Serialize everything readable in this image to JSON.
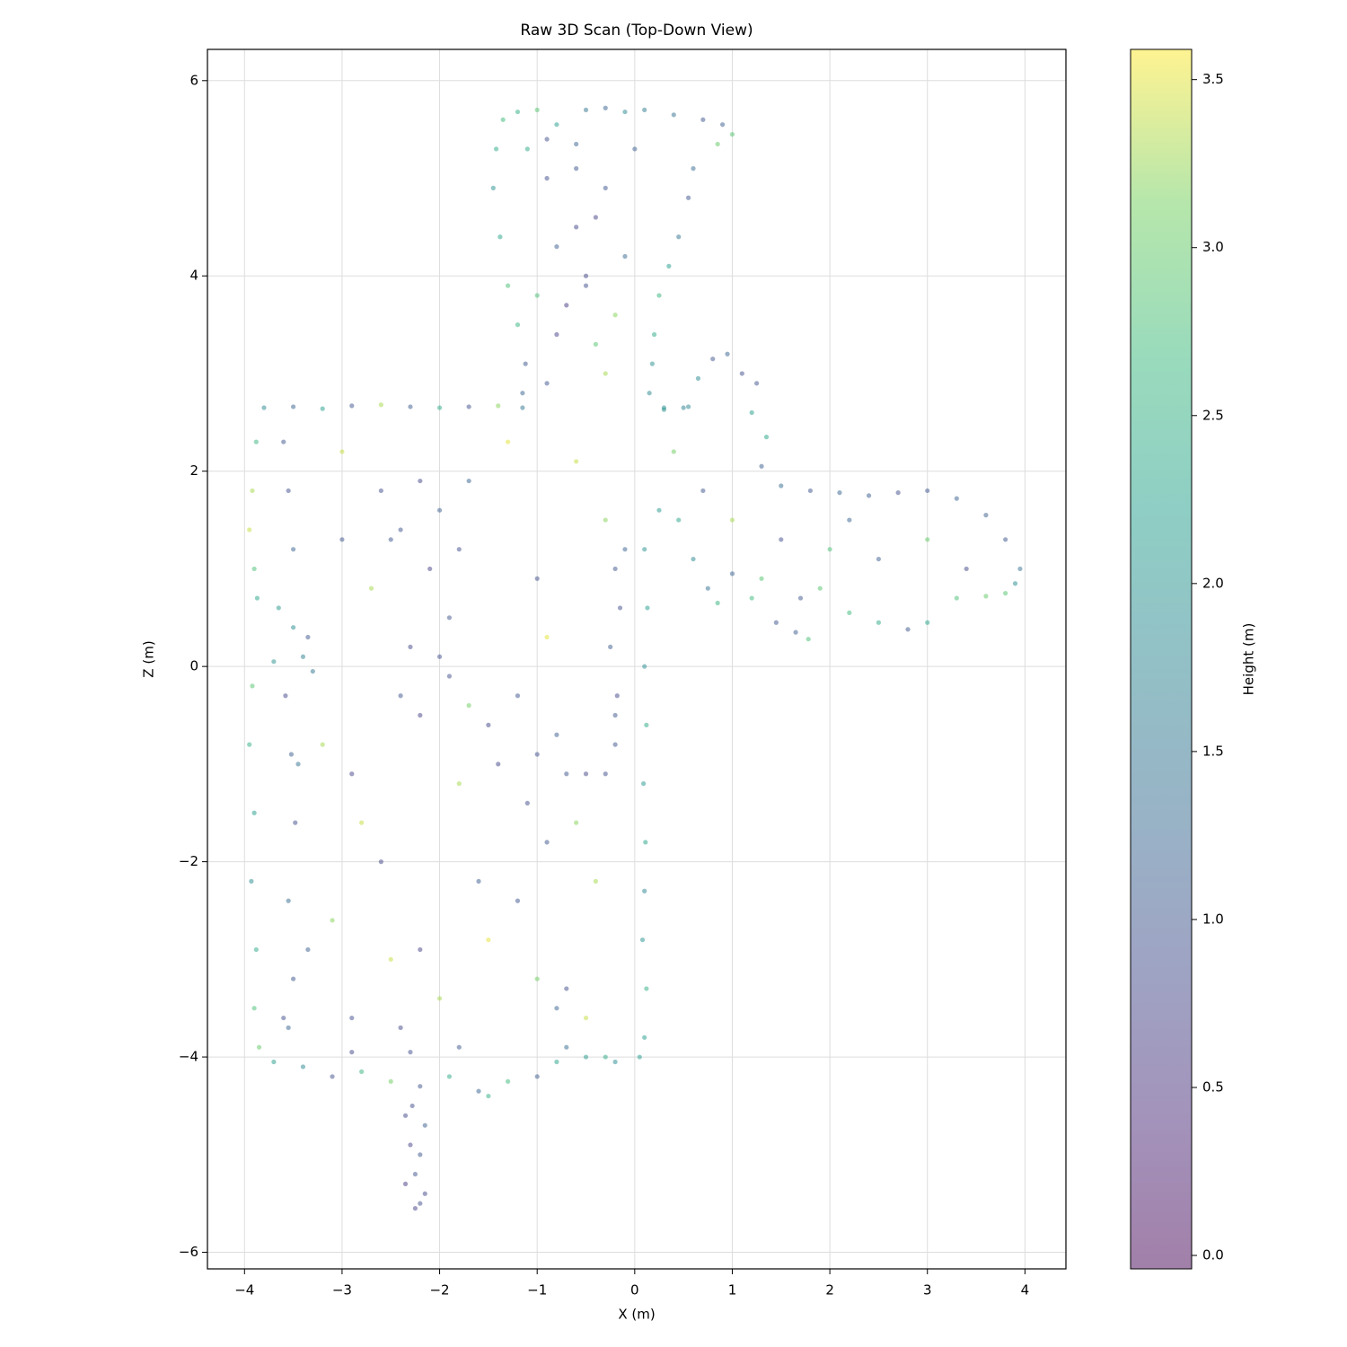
{
  "chart_data": {
    "type": "scatter",
    "title": "Raw 3D Scan (Top-Down View)",
    "xlabel": "X (m)",
    "ylabel": "Z (m)",
    "colorbar_label": "Height (m)",
    "cmap": "viridis",
    "alpha": 0.5,
    "grid": true,
    "xlim": [
      -4.38,
      4.42
    ],
    "ylim": [
      -6.17,
      6.32
    ],
    "clim": [
      -0.04,
      3.59
    ],
    "xticks": [
      {
        "value": -4,
        "label": "−4"
      },
      {
        "value": -3,
        "label": "−3"
      },
      {
        "value": -2,
        "label": "−2"
      },
      {
        "value": -1,
        "label": "−1"
      },
      0,
      1,
      2,
      3,
      4
    ],
    "yticks": [
      {
        "value": -6,
        "label": "−6"
      },
      {
        "value": -4,
        "label": "−4"
      },
      {
        "value": -2,
        "label": "−2"
      },
      0,
      2,
      4,
      6
    ],
    "cticks": [
      {
        "value": 0,
        "label": "0.0"
      },
      0.5,
      {
        "value": 1,
        "label": "1.0"
      },
      1.5,
      {
        "value": 2,
        "label": "2.0"
      },
      2.5,
      {
        "value": 3,
        "label": "3.0"
      },
      3.5
    ],
    "x": [
      -3.8,
      -3.5,
      -3.2,
      -2.9,
      -2.6,
      -2.3,
      -2.0,
      -1.7,
      -1.4,
      -1.15,
      -3.88,
      -3.92,
      -3.95,
      -3.9,
      -3.87,
      -3.92,
      -3.95,
      -3.9,
      -3.93,
      -3.88,
      -3.9,
      -3.85,
      -3.6,
      -3.55,
      -3.5,
      -3.58,
      -3.52,
      -3.48,
      -3.55,
      -3.5,
      -3.65,
      -3.5,
      -3.4,
      -3.3,
      -3.35,
      -3.55,
      -3.6,
      -3.7,
      -3.45,
      -3.35,
      -3.7,
      -3.4,
      -3.1,
      -2.8,
      -2.5,
      -2.2,
      -1.9,
      -1.6,
      -1.3,
      -1.0,
      -0.8,
      -0.5,
      -0.2,
      0.05,
      -2.9,
      -2.3,
      -1.8,
      -1.5,
      -0.7,
      -0.3,
      -2.35,
      -2.3,
      -2.25,
      -2.2,
      -2.15,
      -2.35,
      -2.28,
      -2.2,
      -2.25,
      -2.15,
      0.1,
      0.12,
      0.08,
      0.1,
      0.11,
      0.09,
      0.12,
      0.1,
      0.13,
      0.1,
      -0.2,
      -0.15,
      -0.25,
      -0.18,
      -0.2,
      -0.1,
      -0.3,
      -0.2,
      -0.5,
      -0.7,
      -1.15,
      -1.12,
      -1.2,
      -1.3,
      -1.38,
      -1.45,
      -1.42,
      -1.35,
      -1.2,
      -1.0,
      -0.8,
      -0.5,
      -0.3,
      -0.1,
      0.1,
      0.4,
      0.7,
      0.9,
      1.0,
      0.85,
      0.6,
      0.55,
      0.45,
      0.35,
      0.25,
      0.2,
      0.18,
      0.15,
      0.3,
      0.5,
      -0.9,
      -0.6,
      -0.4,
      -0.8,
      -0.5,
      -0.2,
      -0.7,
      -0.4,
      -0.9,
      -0.3,
      -1.1,
      -0.6,
      -0.9,
      0.0,
      -0.3,
      -0.6,
      -0.1,
      -1.0,
      -0.5,
      -0.8,
      0.3,
      0.55,
      0.65,
      0.8,
      0.95,
      1.1,
      1.25,
      1.2,
      1.35,
      1.3,
      1.5,
      1.8,
      2.1,
      2.4,
      2.7,
      3.0,
      3.3,
      3.6,
      3.8,
      3.95,
      0.25,
      0.45,
      0.6,
      0.75,
      0.85,
      1.0,
      1.2,
      1.45,
      1.65,
      1.78,
      1.7,
      1.9,
      2.2,
      2.5,
      2.8,
      3.0,
      3.3,
      3.6,
      3.8,
      3.9,
      0.4,
      0.7,
      1.0,
      1.5,
      2.0,
      2.5,
      3.0,
      3.4,
      2.2,
      1.3,
      -2.6,
      -2.4,
      -2.2,
      -2.0,
      -1.8,
      -2.5,
      -2.1,
      -1.7,
      -2.3,
      -1.9,
      -2.4,
      -2.0,
      -2.2,
      -1.5,
      -1.2,
      -1.0,
      -0.8,
      -1.4,
      -1.1,
      -0.9,
      -3.0,
      -2.7,
      -1.3,
      -0.6,
      -0.3,
      -3.2,
      -2.8,
      -1.7,
      -0.9,
      -0.4,
      -3.1,
      -2.5,
      -2.0,
      -1.5,
      -1.0,
      -0.5,
      -2.9,
      -1.8,
      -1.2,
      -0.6,
      -3.0,
      -2.6,
      -2.2,
      -1.6,
      -0.7,
      -0.8,
      -2.4,
      -1.0,
      -1.9,
      -2.9
    ],
    "values": [
      2.65,
      2.66,
      2.64,
      2.67,
      2.68,
      2.66,
      2.65,
      2.66,
      2.67,
      2.65,
      2.3,
      1.8,
      1.4,
      1.0,
      0.7,
      -0.2,
      -0.8,
      -1.5,
      -2.2,
      -2.9,
      -3.5,
      -3.9,
      2.3,
      1.8,
      1.2,
      -0.3,
      -0.9,
      -1.6,
      -2.4,
      -3.2,
      0.6,
      0.4,
      0.1,
      -0.05,
      0.3,
      -3.7,
      -3.6,
      0.05,
      -1.0,
      -2.9,
      -4.05,
      -4.1,
      -4.2,
      -4.15,
      -4.25,
      -4.3,
      -4.2,
      -4.35,
      -4.25,
      -4.2,
      -4.05,
      -4.0,
      -4.05,
      -4.0,
      -3.95,
      -3.95,
      -3.9,
      -4.4,
      -3.9,
      -4.0,
      -4.6,
      -4.9,
      -5.2,
      -5.5,
      -4.7,
      -5.3,
      -4.5,
      -5.0,
      -5.55,
      -5.4,
      -3.8,
      -3.3,
      -2.8,
      -2.3,
      -1.8,
      -1.2,
      -0.6,
      0.0,
      0.6,
      1.2,
      1.0,
      0.6,
      0.2,
      -0.3,
      -0.8,
      1.2,
      -1.1,
      -0.5,
      -1.1,
      -1.1,
      2.8,
      3.1,
      3.5,
      3.9,
      4.4,
      4.9,
      5.3,
      5.6,
      5.68,
      5.7,
      5.55,
      5.7,
      5.72,
      5.68,
      5.7,
      5.65,
      5.6,
      5.55,
      5.45,
      5.35,
      5.1,
      4.8,
      4.4,
      4.1,
      3.8,
      3.4,
      3.1,
      2.8,
      2.65,
      2.65,
      5.0,
      5.1,
      4.6,
      4.3,
      4.0,
      3.6,
      3.7,
      3.3,
      2.9,
      3.0,
      5.3,
      5.35,
      5.4,
      5.3,
      4.9,
      4.5,
      4.2,
      3.8,
      3.9,
      3.4,
      2.63,
      2.66,
      2.95,
      3.15,
      3.2,
      3.0,
      2.9,
      2.6,
      2.35,
      2.05,
      1.85,
      1.8,
      1.78,
      1.75,
      1.78,
      1.8,
      1.72,
      1.55,
      1.3,
      1.0,
      1.6,
      1.5,
      1.1,
      0.8,
      0.65,
      0.95,
      0.7,
      0.45,
      0.35,
      0.28,
      0.7,
      0.8,
      0.55,
      0.45,
      0.38,
      0.45,
      0.7,
      0.72,
      0.75,
      0.85,
      2.2,
      1.8,
      1.5,
      1.3,
      1.2,
      1.1,
      1.3,
      1.0,
      1.5,
      0.9,
      1.8,
      1.4,
      1.9,
      1.6,
      1.2,
      1.3,
      1.0,
      1.9,
      0.2,
      -0.1,
      -0.3,
      0.1,
      -0.5,
      -0.6,
      -0.3,
      -0.9,
      -0.7,
      -1.0,
      -1.4,
      -1.8,
      2.2,
      0.8,
      2.3,
      2.1,
      1.5,
      -0.8,
      -1.6,
      -0.4,
      0.3,
      -2.2,
      -2.6,
      -3.0,
      -3.4,
      -2.8,
      -3.2,
      -3.6,
      -3.6,
      -1.2,
      -2.4,
      -1.6,
      1.3,
      -2.0,
      -2.9,
      -2.2,
      -3.3,
      -3.5,
      -3.7,
      0.9,
      0.5,
      -1.1
    ],
    "heights": [
      1.8,
      1.2,
      2.2,
      1.0,
      3.3,
      1.1,
      2.4,
      0.9,
      3.2,
      1.5,
      2.6,
      3.3,
      3.4,
      2.8,
      2.3,
      2.9,
      2.5,
      2.2,
      1.9,
      2.4,
      2.8,
      3.0,
      1.0,
      0.9,
      1.2,
      0.8,
      1.1,
      0.9,
      1.3,
      1.0,
      2.1,
      1.9,
      1.7,
      1.5,
      1.0,
      1.2,
      0.9,
      2.0,
      1.4,
      1.1,
      2.2,
      1.8,
      0.9,
      2.6,
      3.1,
      1.0,
      2.4,
      1.2,
      2.7,
      1.1,
      2.3,
      2.1,
      1.9,
      2.2,
      0.8,
      0.9,
      1.0,
      2.5,
      1.3,
      2.4,
      0.8,
      0.7,
      1.0,
      0.9,
      1.1,
      0.6,
      0.9,
      1.0,
      0.7,
      0.8,
      2.2,
      2.5,
      2.0,
      1.8,
      2.3,
      2.1,
      2.4,
      1.9,
      2.2,
      2.0,
      1.0,
      0.9,
      1.1,
      0.8,
      1.0,
      1.2,
      0.9,
      1.0,
      0.8,
      1.0,
      1.2,
      1.0,
      2.6,
      2.8,
      2.3,
      2.0,
      2.4,
      2.7,
      2.5,
      2.9,
      2.2,
      1.5,
      1.2,
      1.8,
      1.6,
      1.4,
      1.0,
      1.1,
      2.9,
      3.0,
      1.3,
      1.0,
      1.5,
      2.2,
      2.6,
      2.4,
      2.0,
      1.8,
      1.9,
      1.7,
      0.9,
      1.0,
      0.7,
      1.1,
      0.8,
      3.2,
      0.6,
      2.9,
      1.0,
      3.3,
      2.4,
      1.2,
      0.9,
      1.1,
      1.0,
      0.8,
      1.3,
      2.8,
      0.9,
      0.7,
      2.0,
      1.8,
      1.9,
      1.0,
      1.2,
      0.9,
      1.0,
      2.2,
      2.3,
      1.1,
      1.3,
      1.0,
      1.2,
      1.1,
      0.9,
      1.0,
      1.2,
      1.1,
      1.0,
      1.4,
      2.1,
      2.3,
      1.8,
      1.4,
      2.6,
      1.2,
      2.7,
      1.0,
      1.1,
      2.8,
      1.0,
      2.9,
      2.7,
      2.4,
      1.0,
      2.3,
      2.8,
      3.0,
      2.9,
      1.9,
      3.1,
      1.0,
      3.3,
      0.9,
      2.8,
      1.1,
      3.0,
      0.8,
      1.2,
      2.9,
      0.9,
      1.0,
      0.8,
      1.1,
      0.9,
      1.0,
      0.7,
      1.2,
      0.8,
      0.9,
      1.0,
      0.9,
      0.7,
      0.8,
      1.0,
      0.9,
      1.1,
      0.8,
      0.9,
      1.0,
      3.4,
      3.3,
      3.5,
      3.4,
      3.2,
      3.3,
      3.4,
      3.1,
      3.5,
      3.3,
      3.2,
      3.4,
      3.3,
      3.5,
      3.1,
      3.4,
      0.9,
      3.3,
      1.0,
      3.2,
      1.0,
      0.8,
      0.7,
      1.1,
      0.9,
      1.2,
      0.8,
      0.9,
      1.0,
      0.7
    ]
  }
}
